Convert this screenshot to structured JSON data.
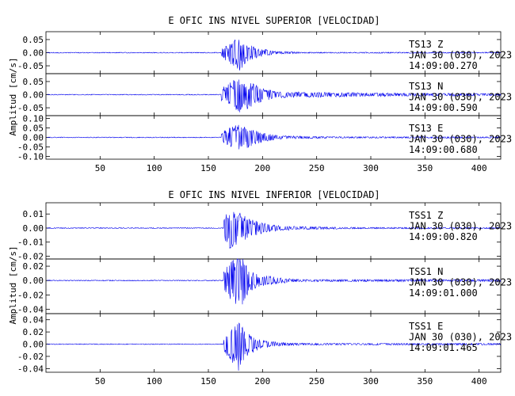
{
  "chart_data": [
    {
      "type": "line",
      "title": "E OFIC INS NIVEL SUPERIOR [VELOCIDAD]",
      "ylabel": "Amplitud [cm/s]",
      "xlim": [
        0,
        420
      ],
      "x_ticks": [
        "50",
        "100",
        "150",
        "200",
        "250",
        "300",
        "350",
        "400"
      ],
      "series": [
        {
          "station": "TS13",
          "component": "Z",
          "date": "JAN 30 (030), 2023",
          "time": "14:09:00.270",
          "ylim": [
            -0.08,
            0.08
          ],
          "y_ticks": [
            0.05,
            0.0,
            -0.05
          ],
          "y_tick_labels": [
            "0.05",
            "0.00",
            "-0.05"
          ],
          "background_amp": 0.0015,
          "onset": 162,
          "envelope": [
            [
              162,
              0.02
            ],
            [
              170,
              0.045
            ],
            [
              175,
              0.06
            ],
            [
              178,
              0.08
            ],
            [
              185,
              0.035
            ],
            [
              195,
              0.02
            ],
            [
              210,
              0.006
            ],
            [
              240,
              0.002
            ]
          ]
        },
        {
          "station": "TS13",
          "component": "N",
          "date": "JAN 30 (030), 2023",
          "time": "14:09:00.590",
          "ylim": [
            -0.08,
            0.08
          ],
          "y_ticks": [
            0.05,
            0.0,
            -0.05
          ],
          "y_tick_labels": [
            "0.05",
            "0.00",
            "-0.05"
          ],
          "background_amp": 0.0015,
          "onset": 162,
          "envelope": [
            [
              162,
              0.025
            ],
            [
              175,
              0.06
            ],
            [
              180,
              0.07
            ],
            [
              190,
              0.045
            ],
            [
              200,
              0.025
            ],
            [
              215,
              0.012
            ],
            [
              250,
              0.01
            ],
            [
              290,
              0.008
            ],
            [
              330,
              0.006
            ],
            [
              420,
              0.004
            ]
          ]
        },
        {
          "station": "TS13",
          "component": "E",
          "date": "JAN 30 (030), 2023",
          "time": "14:09:00.680",
          "ylim": [
            -0.115,
            0.115
          ],
          "y_ticks": [
            0.1,
            0.05,
            0.0,
            -0.05,
            -0.1
          ],
          "y_tick_labels": [
            "0.10",
            "0.05",
            "0.00",
            "-0.05",
            "-0.10"
          ],
          "background_amp": 0.002,
          "onset": 162,
          "envelope": [
            [
              162,
              0.03
            ],
            [
              172,
              0.06
            ],
            [
              180,
              0.07
            ],
            [
              190,
              0.045
            ],
            [
              200,
              0.025
            ],
            [
              215,
              0.01
            ],
            [
              260,
              0.004
            ]
          ]
        }
      ]
    },
    {
      "type": "line",
      "title": "E OFIC INS NIVEL INFERIOR [VELOCIDAD]",
      "ylabel": "Amplitud [cm/s]",
      "xlim": [
        0,
        420
      ],
      "x_ticks": [
        "50",
        "100",
        "150",
        "200",
        "250",
        "300",
        "350",
        "400"
      ],
      "series": [
        {
          "station": "TSS1",
          "component": "Z",
          "date": "JAN 30 (030), 2023",
          "time": "14:09:00.820",
          "ylim": [
            -0.022,
            0.018
          ],
          "y_ticks": [
            0.01,
            0.0,
            -0.01,
            -0.02
          ],
          "y_tick_labels": [
            "0.01",
            "0.00",
            "-0.01",
            "-0.02"
          ],
          "background_amp": 0.0003,
          "onset": 164,
          "envelope": [
            [
              164,
              0.008
            ],
            [
              170,
              0.015
            ],
            [
              178,
              0.012
            ],
            [
              190,
              0.006
            ],
            [
              205,
              0.003
            ],
            [
              230,
              0.0012
            ],
            [
              260,
              0.0008
            ],
            [
              300,
              0.0005
            ]
          ]
        },
        {
          "station": "TSS1",
          "component": "N",
          "date": "JAN 30 (030), 2023",
          "time": "14:09:01.000",
          "ylim": [
            -0.046,
            0.03
          ],
          "y_ticks": [
            0.02,
            0.0,
            -0.02,
            -0.04
          ],
          "y_tick_labels": [
            "0.02",
            "0.00",
            "-0.02",
            "-0.04"
          ],
          "background_amp": 0.0006,
          "onset": 164,
          "envelope": [
            [
              164,
              0.015
            ],
            [
              172,
              0.03
            ],
            [
              178,
              0.043
            ],
            [
              188,
              0.015
            ],
            [
              200,
              0.008
            ],
            [
              215,
              0.004
            ],
            [
              240,
              0.0015
            ]
          ]
        },
        {
          "station": "TSS1",
          "component": "E",
          "date": "JAN 30 (030), 2023",
          "time": "14:09:01.465",
          "ylim": [
            -0.046,
            0.05
          ],
          "y_ticks": [
            0.04,
            0.02,
            0.0,
            -0.02,
            -0.04
          ],
          "y_tick_labels": [
            "0.04",
            "0.02",
            "0.00",
            "-0.02",
            "-0.04"
          ],
          "background_amp": 0.0006,
          "onset": 164,
          "envelope": [
            [
              164,
              0.012
            ],
            [
              172,
              0.03
            ],
            [
              178,
              0.045
            ],
            [
              185,
              0.02
            ],
            [
              198,
              0.008
            ],
            [
              215,
              0.003
            ],
            [
              240,
              0.0015
            ]
          ]
        }
      ]
    }
  ]
}
